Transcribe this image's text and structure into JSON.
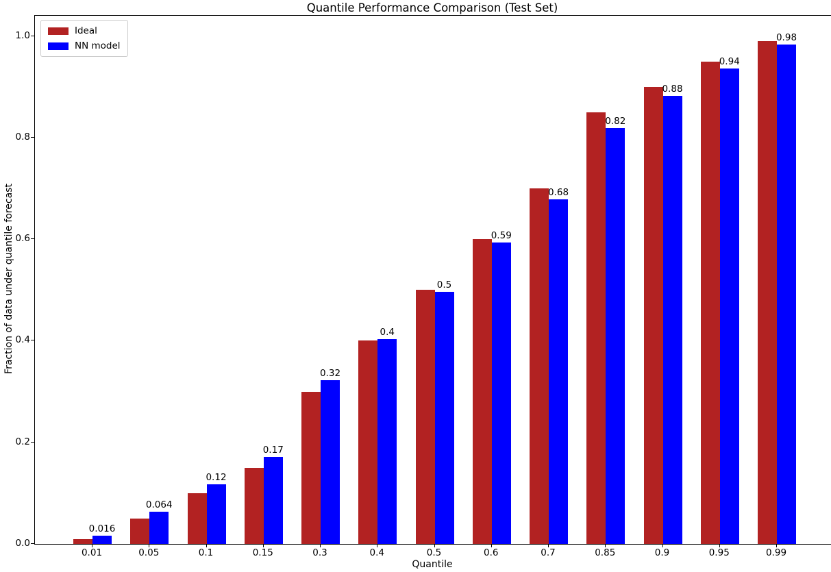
{
  "chart_data": {
    "type": "bar",
    "title": "Quantile Performance Comparison (Test Set)",
    "xlabel": "Quantile",
    "ylabel": "Fraction of data under quantile forecast",
    "categories": [
      "0.01",
      "0.05",
      "0.1",
      "0.15",
      "0.3",
      "0.4",
      "0.5",
      "0.6",
      "0.7",
      "0.85",
      "0.9",
      "0.95",
      "0.99"
    ],
    "series": [
      {
        "name": "Ideal",
        "color": "#b22222",
        "values": [
          0.01,
          0.05,
          0.1,
          0.15,
          0.3,
          0.4,
          0.5,
          0.6,
          0.7,
          0.85,
          0.9,
          0.95,
          0.99
        ]
      },
      {
        "name": "NN model",
        "color": "#0000ff",
        "values": [
          0.016,
          0.064,
          0.118,
          0.172,
          0.322,
          0.404,
          0.497,
          0.594,
          0.678,
          0.819,
          0.882,
          0.936,
          0.983
        ],
        "labels": [
          "0.016",
          "0.064",
          "0.12",
          "0.17",
          "0.32",
          "0.4",
          "0.5",
          "0.59",
          "0.68",
          "0.82",
          "0.88",
          "0.94",
          "0.98"
        ]
      }
    ],
    "yticks": [
      "0.0",
      "0.2",
      "0.4",
      "0.6",
      "0.8",
      "1.0"
    ],
    "ylim": [
      0,
      1.04
    ],
    "xlim_note": "13 categorical groups",
    "grid": false,
    "legend_position": "upper left",
    "background": "#ffffff",
    "text_color": "#000000"
  }
}
